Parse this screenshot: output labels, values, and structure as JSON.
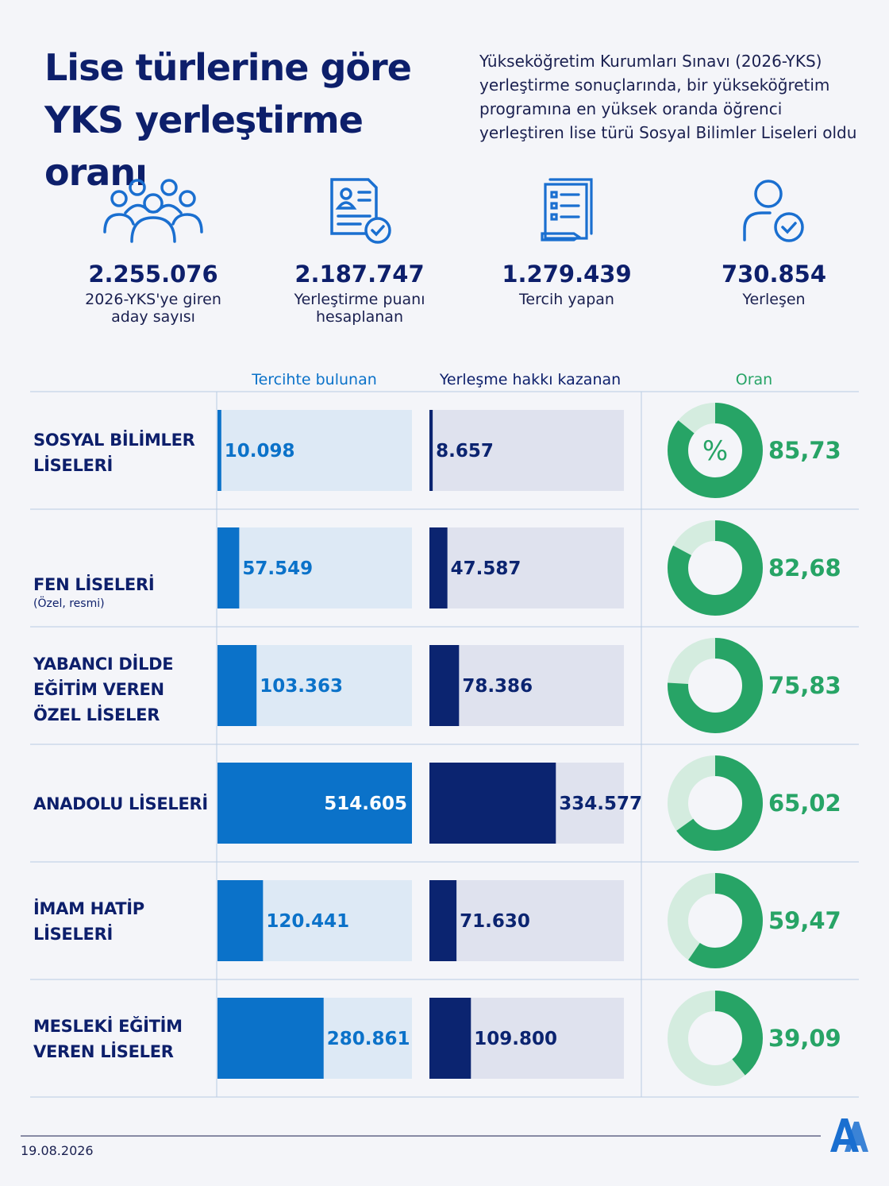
{
  "title": "Lise türlerine göre YKS yerleştirme oranı",
  "intro": "Yükseköğretim Kurumları Sınavı (2026-YKS) yerleştirme sonuçlarında, bir yükseköğretim programına en yüksek oranda öğrenci yerleştiren lise türü Sosyal Bilimler Liseleri oldu",
  "stats": [
    {
      "icon": "group-people-icon",
      "value": "2.255.076",
      "label": "2026-YKS'ye giren\naday sayısı"
    },
    {
      "icon": "document-check-icon",
      "value": "2.187.747",
      "label": "Yerleştirme puanı\nhesaplanan"
    },
    {
      "icon": "checklist-icon",
      "value": "1.279.439",
      "label": "Tercih yapan"
    },
    {
      "icon": "user-check-icon",
      "value": "730.854",
      "label": "Yerleşen"
    }
  ],
  "columns": {
    "preferred": "Tercihte bulunan",
    "placed": "Yerleşme hakkı kazanan",
    "ratio": "Oran"
  },
  "colors": {
    "preferred": "#0b72c9",
    "preferred_track": "#dde9f5",
    "placed": "#0b2470",
    "placed_track": "#dfe2ee",
    "ratio": "#27a466",
    "ratio_track": "#d4ecdf"
  },
  "percent_symbol": "%",
  "chart_data": {
    "type": "bar",
    "categories": [
      "SOSYAL BİLİMLER LİSELERİ",
      "FEN LİSELERİ",
      "YABANCI DİLDE EĞİTİM VEREN ÖZEL LİSELER",
      "ANADOLU LİSELERİ",
      "İMAM HATİP LİSELERİ",
      "MESLEKİ EĞİTİM VEREN LİSELER"
    ],
    "category_notes": [
      "",
      "(Özel, resmi)",
      "",
      "",
      "",
      ""
    ],
    "series": [
      {
        "name": "Tercihte bulunan",
        "values": [
          10098,
          57549,
          103363,
          514605,
          120441,
          280861
        ],
        "labels": [
          "10.098",
          "57.549",
          "103.363",
          "514.605",
          "120.441",
          "280.861"
        ]
      },
      {
        "name": "Yerleşme hakkı kazanan",
        "values": [
          8657,
          47587,
          78386,
          334577,
          71630,
          109800
        ],
        "labels": [
          "8.657",
          "47.587",
          "78.386",
          "334.577",
          "71.630",
          "109.800"
        ]
      },
      {
        "name": "Oran",
        "values": [
          85.73,
          82.68,
          75.83,
          65.02,
          59.47,
          39.09
        ],
        "labels": [
          "85,73",
          "82,68",
          "75,83",
          "65,02",
          "59,47",
          "39,09"
        ]
      }
    ]
  },
  "date": "19.08.2026",
  "logo": "AA"
}
